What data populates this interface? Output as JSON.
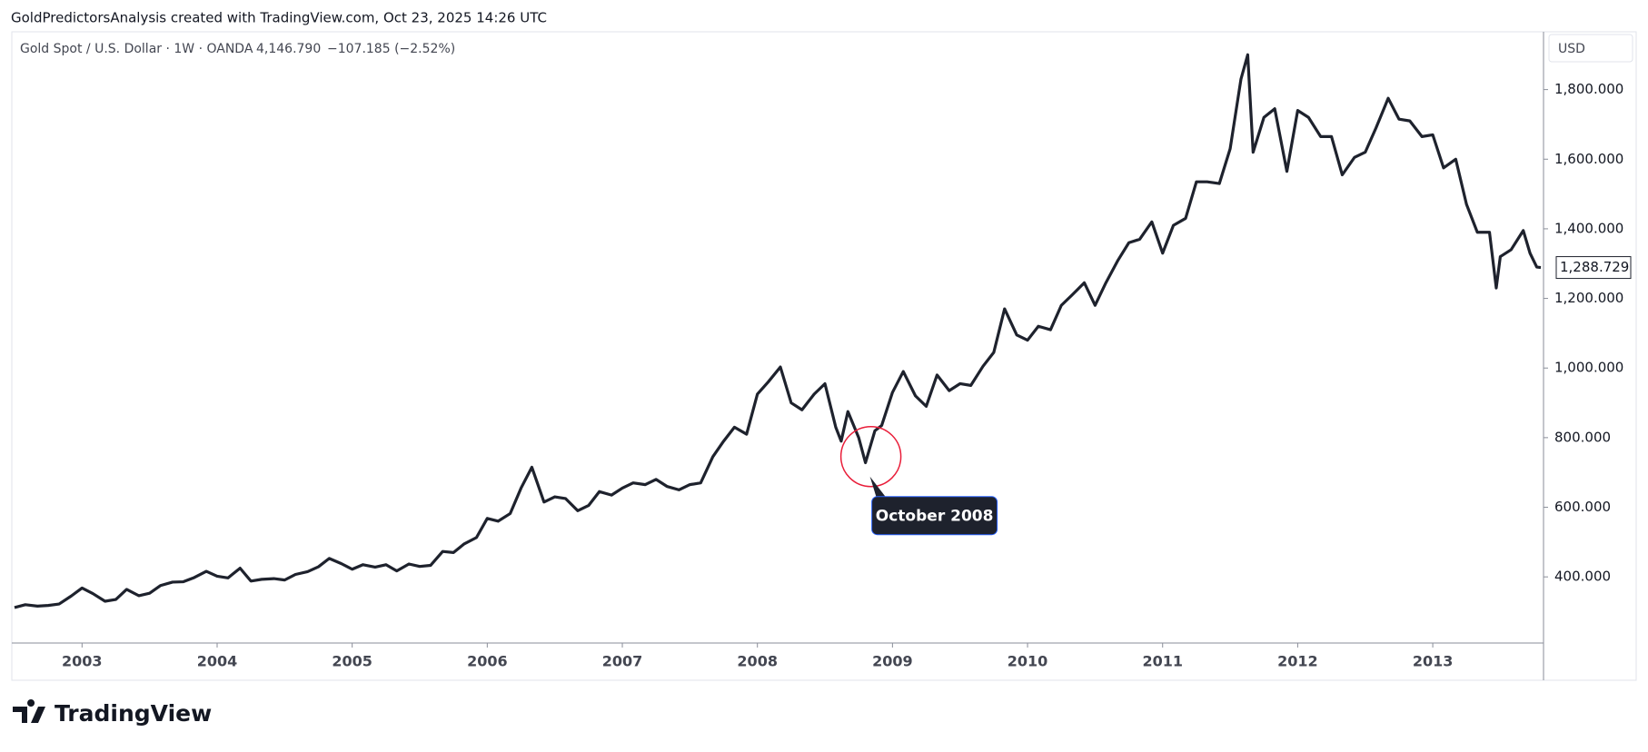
{
  "header": "GoldPredictorsAnalysis created with TradingView.com, Oct 23, 2025 14:26 UTC",
  "legend": "Gold Spot / U.S. Dollar · 1W · OANDA",
  "last": "4,146.790",
  "change": "−107.185 (−2.52%)",
  "currency": "USD",
  "logo": "TradingView",
  "chart_data": {
    "type": "line",
    "color": "#1e222d",
    "x": [
      2002.5,
      2002.58,
      2002.67,
      2002.75,
      2002.83,
      2002.92,
      2003.0,
      2003.08,
      2003.17,
      2003.25,
      2003.33,
      2003.42,
      2003.5,
      2003.58,
      2003.67,
      2003.75,
      2003.83,
      2003.92,
      2004.0,
      2004.08,
      2004.17,
      2004.25,
      2004.33,
      2004.42,
      2004.5,
      2004.58,
      2004.67,
      2004.75,
      2004.83,
      2004.92,
      2005.0,
      2005.08,
      2005.17,
      2005.25,
      2005.33,
      2005.42,
      2005.5,
      2005.58,
      2005.67,
      2005.75,
      2005.83,
      2005.92,
      2006.0,
      2006.08,
      2006.17,
      2006.25,
      2006.33,
      2006.42,
      2006.5,
      2006.58,
      2006.67,
      2006.75,
      2006.83,
      2006.92,
      2007.0,
      2007.08,
      2007.17,
      2007.25,
      2007.33,
      2007.42,
      2007.5,
      2007.58,
      2007.67,
      2007.75,
      2007.83,
      2007.92,
      2008.0,
      2008.08,
      2008.17,
      2008.25,
      2008.33,
      2008.42,
      2008.5,
      2008.58,
      2008.62,
      2008.67,
      2008.75,
      2008.8,
      2008.87,
      2008.92,
      2009.0,
      2009.08,
      2009.17,
      2009.25,
      2009.33,
      2009.42,
      2009.5,
      2009.58,
      2009.67,
      2009.75,
      2009.83,
      2009.92,
      2010.0,
      2010.08,
      2010.17,
      2010.25,
      2010.33,
      2010.42,
      2010.5,
      2010.58,
      2010.67,
      2010.75,
      2010.83,
      2010.92,
      2011.0,
      2011.08,
      2011.17,
      2011.25,
      2011.33,
      2011.42,
      2011.5,
      2011.58,
      2011.63,
      2011.67,
      2011.75,
      2011.83,
      2011.92,
      2012.0,
      2012.08,
      2012.17,
      2012.25,
      2012.33,
      2012.42,
      2012.5,
      2012.58,
      2012.67,
      2012.75,
      2012.83,
      2012.92,
      2013.0,
      2013.08,
      2013.17,
      2013.25,
      2013.33,
      2013.42,
      2013.47,
      2013.5,
      2013.58,
      2013.67,
      2013.72,
      2013.77,
      2013.8
    ],
    "values": [
      312,
      320,
      316,
      318,
      322,
      345,
      368,
      352,
      330,
      335,
      364,
      346,
      353,
      375,
      385,
      386,
      398,
      416,
      402,
      397,
      425,
      388,
      393,
      395,
      391,
      407,
      415,
      429,
      453,
      438,
      422,
      435,
      428,
      435,
      417,
      437,
      430,
      433,
      473,
      470,
      495,
      513,
      568,
      560,
      582,
      655,
      715,
      615,
      630,
      625,
      590,
      605,
      645,
      635,
      655,
      670,
      665,
      680,
      660,
      650,
      665,
      670,
      745,
      790,
      830,
      810,
      925,
      960,
      1003,
      900,
      880,
      925,
      955,
      830,
      790,
      875,
      800,
      728,
      820,
      835,
      930,
      990,
      920,
      890,
      980,
      935,
      955,
      950,
      1005,
      1045,
      1170,
      1095,
      1080,
      1120,
      1110,
      1180,
      1210,
      1245,
      1180,
      1245,
      1310,
      1360,
      1370,
      1420,
      1330,
      1410,
      1430,
      1535,
      1535,
      1530,
      1630,
      1830,
      1900,
      1620,
      1720,
      1745,
      1565,
      1740,
      1720,
      1665,
      1665,
      1555,
      1605,
      1620,
      1690,
      1775,
      1715,
      1710,
      1665,
      1670,
      1575,
      1600,
      1470,
      1390,
      1390,
      1230,
      1320,
      1340,
      1395,
      1330,
      1290,
      1288.729
    ],
    "xlim": [
      2002.48,
      2013.82
    ],
    "xticks": [
      2003,
      2004,
      2005,
      2006,
      2007,
      2008,
      2009,
      2010,
      2011,
      2012,
      2013
    ],
    "ylim": [
      210,
      1966
    ],
    "yticks": [
      {
        "value": 400,
        "label": "400.000"
      },
      {
        "value": 600,
        "label": "600.000"
      },
      {
        "value": 800,
        "label": "800.000"
      },
      {
        "value": 1000,
        "label": "1,000.000"
      },
      {
        "value": 1200,
        "label": "1,200.000"
      },
      {
        "value": 1400,
        "label": "1,400.000"
      },
      {
        "value": 1600,
        "label": "1,600.000"
      },
      {
        "value": 1800,
        "label": "1,800.000"
      }
    ],
    "price_label": {
      "value": 1288.729,
      "label": "1,288.729"
    },
    "annotation": {
      "text": "October 2008",
      "x": 2008.82,
      "y": 730
    }
  }
}
